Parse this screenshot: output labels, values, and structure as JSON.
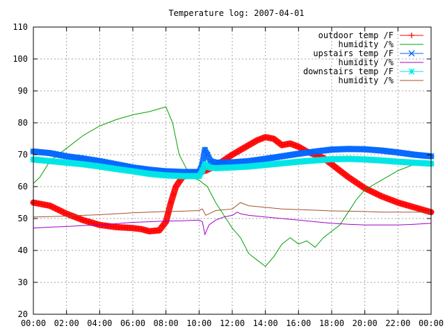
{
  "chart_data": {
    "type": "line",
    "title": "Temperature log: 2007-04-01",
    "xlabel": "",
    "ylabel": "",
    "xlim": [
      0,
      24
    ],
    "ylim": [
      20,
      110
    ],
    "grid": true,
    "legend_position": "top-right",
    "x_ticks": [
      {
        "value": 0,
        "label": "00:00"
      },
      {
        "value": 2,
        "label": "02:00"
      },
      {
        "value": 4,
        "label": "04:00"
      },
      {
        "value": 6,
        "label": "06:00"
      },
      {
        "value": 8,
        "label": "08:00"
      },
      {
        "value": 10,
        "label": "10:00"
      },
      {
        "value": 12,
        "label": "12:00"
      },
      {
        "value": 14,
        "label": "14:00"
      },
      {
        "value": 16,
        "label": "16:00"
      },
      {
        "value": 18,
        "label": "18:00"
      },
      {
        "value": 20,
        "label": "20:00"
      },
      {
        "value": 22,
        "label": "22:00"
      },
      {
        "value": 24,
        "label": "00:00"
      }
    ],
    "y_ticks": [
      {
        "value": 20,
        "label": "20"
      },
      {
        "value": 30,
        "label": "30"
      },
      {
        "value": 40,
        "label": "40"
      },
      {
        "value": 50,
        "label": "50"
      },
      {
        "value": 60,
        "label": "60"
      },
      {
        "value": 70,
        "label": "70"
      },
      {
        "value": 80,
        "label": "80"
      },
      {
        "value": 90,
        "label": "90"
      },
      {
        "value": 100,
        "label": "100"
      },
      {
        "value": 110,
        "label": "110"
      }
    ],
    "series": [
      {
        "name": "outdoor temp /F",
        "color": "#ff0000",
        "marker": "plus",
        "style": "points",
        "points": [
          [
            0,
            55
          ],
          [
            1,
            54
          ],
          [
            2,
            51.5
          ],
          [
            3,
            49.5
          ],
          [
            4,
            48
          ],
          [
            5,
            47.3
          ],
          [
            6,
            47
          ],
          [
            6.5,
            46.7
          ],
          [
            7,
            46
          ],
          [
            7.6,
            46.3
          ],
          [
            8,
            49
          ],
          [
            8.3,
            55
          ],
          [
            8.6,
            60
          ],
          [
            9,
            63
          ],
          [
            9.5,
            64
          ],
          [
            10,
            64.5
          ],
          [
            10.4,
            65
          ],
          [
            11,
            66.5
          ],
          [
            12,
            70
          ],
          [
            13,
            73
          ],
          [
            13.5,
            74.5
          ],
          [
            14,
            75.5
          ],
          [
            14.5,
            75
          ],
          [
            15,
            73
          ],
          [
            15.5,
            73.5
          ],
          [
            16,
            72.5
          ],
          [
            16.5,
            71
          ],
          [
            17,
            70
          ],
          [
            17.5,
            69
          ],
          [
            18,
            67
          ],
          [
            19,
            63
          ],
          [
            20,
            59.5
          ],
          [
            21,
            57
          ],
          [
            22,
            55
          ],
          [
            23,
            53.5
          ],
          [
            24,
            52
          ]
        ]
      },
      {
        "name": "humidity /%",
        "color": "#00a000",
        "marker": "none",
        "style": "line",
        "points": [
          [
            0,
            61
          ],
          [
            0.4,
            63
          ],
          [
            1,
            68
          ],
          [
            2,
            72
          ],
          [
            3,
            76
          ],
          [
            4,
            79
          ],
          [
            5,
            81
          ],
          [
            6,
            82.5
          ],
          [
            7,
            83.5
          ],
          [
            8,
            85
          ],
          [
            8.4,
            80
          ],
          [
            8.8,
            70
          ],
          [
            9.5,
            63
          ],
          [
            10,
            62
          ],
          [
            10.5,
            60
          ],
          [
            11,
            55
          ],
          [
            11.5,
            51
          ],
          [
            12,
            47
          ],
          [
            12.5,
            44
          ],
          [
            13,
            39
          ],
          [
            13.5,
            37
          ],
          [
            14,
            35
          ],
          [
            14.5,
            38
          ],
          [
            15,
            42
          ],
          [
            15.5,
            44
          ],
          [
            16,
            42
          ],
          [
            16.5,
            43
          ],
          [
            17,
            41
          ],
          [
            17.5,
            44
          ],
          [
            18,
            46
          ],
          [
            18.5,
            48
          ],
          [
            19,
            52
          ],
          [
            19.5,
            56
          ],
          [
            20,
            59
          ],
          [
            21,
            62
          ],
          [
            22,
            65
          ],
          [
            23,
            67
          ],
          [
            24,
            67.5
          ]
        ]
      },
      {
        "name": "upstairs temp /F",
        "color": "#0066ff",
        "marker": "cross",
        "style": "points",
        "points": [
          [
            0,
            71
          ],
          [
            1,
            70.5
          ],
          [
            2,
            69.5
          ],
          [
            3,
            68.8
          ],
          [
            4,
            68
          ],
          [
            5,
            67
          ],
          [
            6,
            66
          ],
          [
            7,
            65.3
          ],
          [
            8,
            64.8
          ],
          [
            9,
            64.6
          ],
          [
            10,
            64.6
          ],
          [
            10.2,
            67
          ],
          [
            10.35,
            71.5
          ],
          [
            10.5,
            70
          ],
          [
            10.7,
            68
          ],
          [
            11,
            67.5
          ],
          [
            12,
            67.6
          ],
          [
            13,
            68
          ],
          [
            14,
            68.7
          ],
          [
            15,
            69.5
          ],
          [
            16,
            70.3
          ],
          [
            17,
            71
          ],
          [
            18,
            71.6
          ],
          [
            19,
            71.8
          ],
          [
            20,
            71.7
          ],
          [
            21,
            71.3
          ],
          [
            22,
            70.7
          ],
          [
            23,
            70
          ],
          [
            24,
            69.5
          ]
        ]
      },
      {
        "name": "humidity /%",
        "color": "#a000c8",
        "marker": "none",
        "style": "line",
        "points": [
          [
            0,
            47
          ],
          [
            1,
            47.3
          ],
          [
            2,
            47.5
          ],
          [
            3,
            47.8
          ],
          [
            4,
            48
          ],
          [
            5,
            48.4
          ],
          [
            6,
            48.8
          ],
          [
            7,
            49
          ],
          [
            8,
            49.2
          ],
          [
            9,
            49.3
          ],
          [
            10,
            49.5
          ],
          [
            10.2,
            49
          ],
          [
            10.35,
            45
          ],
          [
            10.6,
            48
          ],
          [
            11,
            49.5
          ],
          [
            11.5,
            50.5
          ],
          [
            12,
            51
          ],
          [
            12.3,
            52
          ],
          [
            12.5,
            51.5
          ],
          [
            13,
            51
          ],
          [
            14,
            50.5
          ],
          [
            15,
            50
          ],
          [
            16,
            49.5
          ],
          [
            17,
            49
          ],
          [
            18,
            48.5
          ],
          [
            19,
            48.2
          ],
          [
            20,
            48
          ],
          [
            21,
            48
          ],
          [
            22,
            48
          ],
          [
            23,
            48.2
          ],
          [
            24,
            48.5
          ]
        ]
      },
      {
        "name": "downstairs temp /F",
        "color": "#00e5e5",
        "marker": "star",
        "style": "points",
        "points": [
          [
            0,
            68.5
          ],
          [
            1,
            68
          ],
          [
            2,
            67.5
          ],
          [
            3,
            67
          ],
          [
            4,
            66.3
          ],
          [
            5,
            65.5
          ],
          [
            6,
            64.8
          ],
          [
            7,
            64
          ],
          [
            8,
            63.5
          ],
          [
            9,
            63.3
          ],
          [
            10,
            63.3
          ],
          [
            10.2,
            65
          ],
          [
            10.35,
            67
          ],
          [
            10.6,
            66
          ],
          [
            11,
            65.8
          ],
          [
            12,
            66
          ],
          [
            13,
            66.3
          ],
          [
            14,
            66.8
          ],
          [
            15,
            67.3
          ],
          [
            16,
            67.8
          ],
          [
            17,
            68.2
          ],
          [
            18,
            68.6
          ],
          [
            19,
            68.7
          ],
          [
            20,
            68.5
          ],
          [
            21,
            68.2
          ],
          [
            22,
            67.8
          ],
          [
            23,
            67.5
          ],
          [
            24,
            67.2
          ]
        ]
      },
      {
        "name": "humidity /%",
        "color": "#a0522d",
        "marker": "none",
        "style": "line",
        "points": [
          [
            0,
            50.5
          ],
          [
            1,
            50.6
          ],
          [
            2,
            50.8
          ],
          [
            3,
            51
          ],
          [
            4,
            51.2
          ],
          [
            5,
            51.5
          ],
          [
            6,
            51.8
          ],
          [
            7,
            52
          ],
          [
            8,
            52.2
          ],
          [
            9,
            52.3
          ],
          [
            10,
            52.5
          ],
          [
            10.2,
            53
          ],
          [
            10.4,
            51
          ],
          [
            11,
            52.5
          ],
          [
            12,
            53
          ],
          [
            12.5,
            55
          ],
          [
            13,
            54
          ],
          [
            14,
            53.5
          ],
          [
            15,
            53
          ],
          [
            16,
            52.8
          ],
          [
            17,
            52.6
          ],
          [
            18,
            52.4
          ],
          [
            19,
            52.3
          ],
          [
            20,
            52.2
          ],
          [
            21,
            52
          ],
          [
            22,
            52
          ],
          [
            23,
            52
          ],
          [
            24,
            52
          ]
        ]
      }
    ]
  }
}
